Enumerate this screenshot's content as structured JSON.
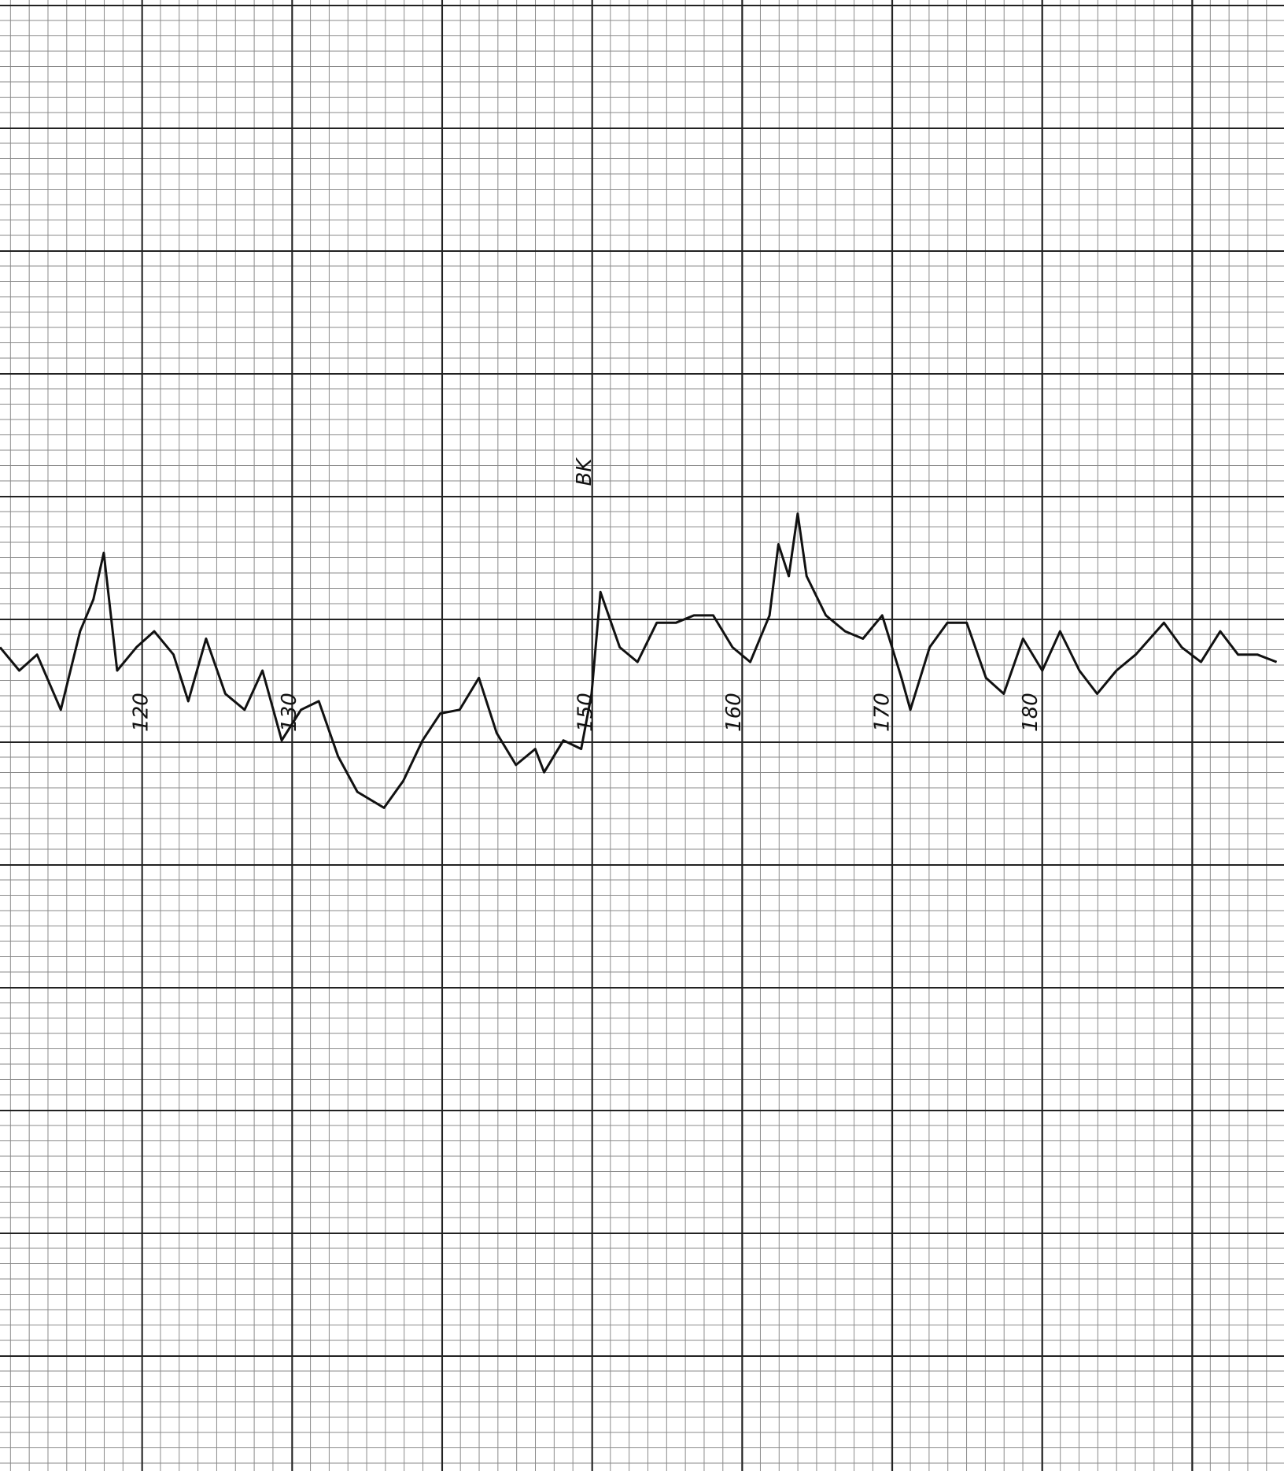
{
  "chart_data": {
    "type": "line",
    "annotation": "BK",
    "xlim": [
      110.8,
      197.4
    ],
    "ylim": [
      0,
      12
    ],
    "xticks": [
      120,
      130,
      150,
      160,
      170,
      180
    ],
    "color": "#111111",
    "x": [
      110.8,
      112.1,
      113.3,
      114.9,
      116.2,
      117.1,
      117.8,
      118.7,
      120.0,
      121.2,
      122.5,
      123.5,
      124.7,
      126.0,
      127.3,
      128.5,
      129.8,
      131.1,
      132.3,
      133.6,
      134.9,
      136.7,
      138.0,
      139.3,
      140.5,
      141.8,
      143.1,
      144.3,
      145.6,
      146.9,
      147.5,
      148.8,
      150.0,
      150.7,
      151.3,
      152.6,
      153.8,
      155.1,
      156.4,
      157.6,
      158.9,
      160.2,
      161.4,
      162.7,
      163.3,
      164.0,
      164.6,
      165.2,
      166.5,
      167.8,
      169.0,
      170.3,
      171.6,
      172.2,
      173.5,
      174.7,
      176.0,
      177.3,
      178.5,
      179.8,
      181.1,
      182.3,
      183.6,
      184.8,
      186.1,
      187.4,
      189.3,
      190.5,
      191.8,
      193.1,
      194.3,
      195.6,
      196.9
    ],
    "values": [
      6.72,
      6.53,
      6.66,
      6.21,
      6.85,
      7.11,
      7.49,
      6.53,
      6.72,
      6.85,
      6.66,
      6.28,
      6.79,
      6.34,
      6.21,
      6.53,
      5.96,
      6.21,
      6.28,
      5.83,
      5.54,
      5.41,
      5.63,
      5.96,
      6.18,
      6.21,
      6.47,
      6.02,
      5.76,
      5.89,
      5.7,
      5.96,
      5.89,
      6.34,
      7.17,
      6.72,
      6.6,
      6.92,
      6.92,
      6.98,
      6.98,
      6.72,
      6.6,
      6.98,
      7.56,
      7.3,
      7.81,
      7.3,
      6.98,
      6.85,
      6.79,
      6.98,
      6.47,
      6.21,
      6.72,
      6.92,
      6.92,
      6.47,
      6.34,
      6.79,
      6.53,
      6.85,
      6.53,
      6.34,
      6.53,
      6.66,
      6.92,
      6.72,
      6.6,
      6.85,
      6.66,
      6.66,
      6.6
    ]
  }
}
